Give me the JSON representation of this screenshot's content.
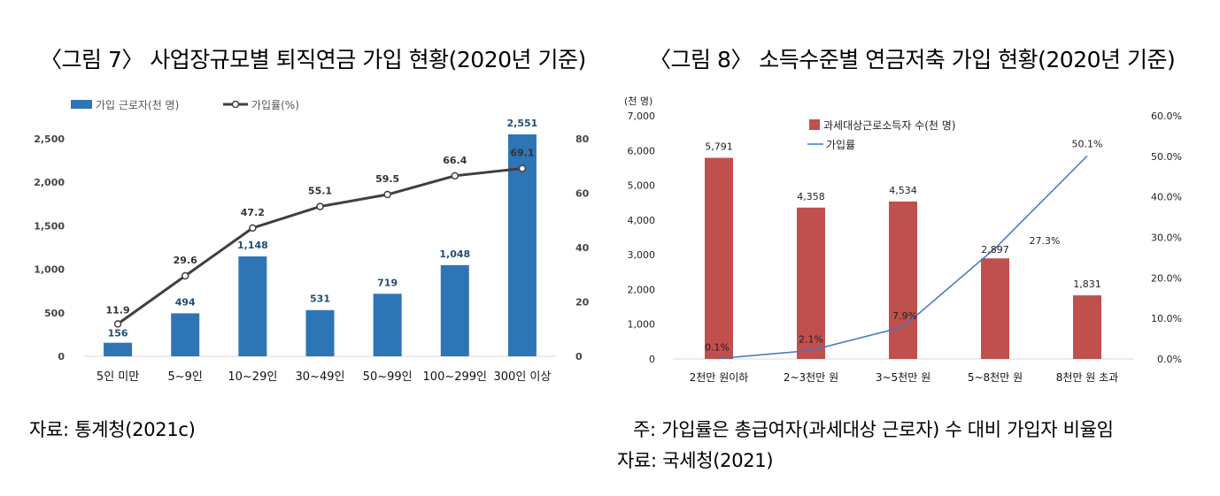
{
  "figure1": {
    "title": "〈그림 7〉 사업장규모별 퇴직연금 가입 현황(2020년 기준)",
    "source": "자료: 통계청(2021c)",
    "legend_bar": "가입 근로자(천 명)",
    "legend_line": "가입률(%)",
    "colors": {
      "bar": "#2E75B6",
      "line": "#404040"
    }
  },
  "figure2": {
    "title": "〈그림 8〉 소득수준별 연금저축 가입 현황(2020년 기준)",
    "note": "주: 가입률은 총급여자(과세대상 근로자) 수 대비 가입자 비율임",
    "source": "자료: 국세청(2021)",
    "unit_label": "(천 명)",
    "legend_bar": "과세대상근로소득자 수(천 명)",
    "legend_line": "가입률",
    "colors": {
      "bar": "#C0504D",
      "line": "#4472C4"
    }
  },
  "chart_data": [
    {
      "type": "bar",
      "categories": [
        "5인 미만",
        "5~9인",
        "10~29인",
        "30~49인",
        "50~99인",
        "100~299인",
        "300인 이상"
      ],
      "series": [
        {
          "name": "가입 근로자(천 명)",
          "type": "bar",
          "axis": "left",
          "values": [
            156,
            494,
            1148,
            531,
            719,
            1048,
            2551
          ],
          "labels": [
            "156",
            "494",
            "1,148",
            "531",
            "719",
            "1,048",
            "2,551"
          ]
        },
        {
          "name": "가입률(%)",
          "type": "line",
          "axis": "right",
          "values": [
            11.9,
            29.6,
            47.2,
            55.1,
            59.5,
            66.4,
            69.1
          ],
          "labels": [
            "11.9",
            "29.6",
            "47.2",
            "55.1",
            "59.5",
            "66.4",
            "69.1"
          ]
        }
      ],
      "y_left": {
        "min": 0,
        "max": 2500,
        "ticks": [
          0,
          500,
          1000,
          1500,
          2000,
          2500
        ],
        "tick_labels": [
          "0",
          "500",
          "1,000",
          "1,500",
          "2,000",
          "2,500"
        ]
      },
      "y_right": {
        "min": 0,
        "max": 80,
        "ticks": [
          0,
          20,
          40,
          60,
          80
        ],
        "tick_labels": [
          "0",
          "20",
          "40",
          "60",
          "80"
        ]
      },
      "grid": false,
      "legend_position": "top-left"
    },
    {
      "type": "bar",
      "categories": [
        "2천만 원이하",
        "2~3천만 원",
        "3~5천만 원",
        "5~8천만 원",
        "8천만 원 초과"
      ],
      "series": [
        {
          "name": "과세대상근로소득자 수(천 명)",
          "type": "bar",
          "axis": "left",
          "values": [
            5791,
            4358,
            4534,
            2897,
            1831
          ],
          "labels": [
            "5,791",
            "4,358",
            "4,534",
            "2,897",
            "1,831"
          ]
        },
        {
          "name": "가입률",
          "type": "line",
          "axis": "right",
          "values": [
            0.1,
            2.1,
            7.9,
            27.3,
            50.1
          ],
          "labels": [
            "0.1%",
            "2.1%",
            "7.9%",
            "27.3%",
            "50.1%"
          ]
        }
      ],
      "y_left": {
        "min": 0,
        "max": 7000,
        "ticks": [
          0,
          1000,
          2000,
          3000,
          4000,
          5000,
          6000,
          7000
        ],
        "tick_labels": [
          "0",
          "1,000",
          "2,000",
          "3,000",
          "4,000",
          "5,000",
          "6,000",
          "7,000"
        ]
      },
      "y_right": {
        "min": 0,
        "max": 60,
        "ticks": [
          0,
          10,
          20,
          30,
          40,
          50,
          60
        ],
        "tick_labels": [
          "0.0%",
          "10.0%",
          "20.0%",
          "30.0%",
          "40.0%",
          "50.0%",
          "60.0%"
        ]
      },
      "grid": false,
      "legend_position": "top-center"
    }
  ]
}
